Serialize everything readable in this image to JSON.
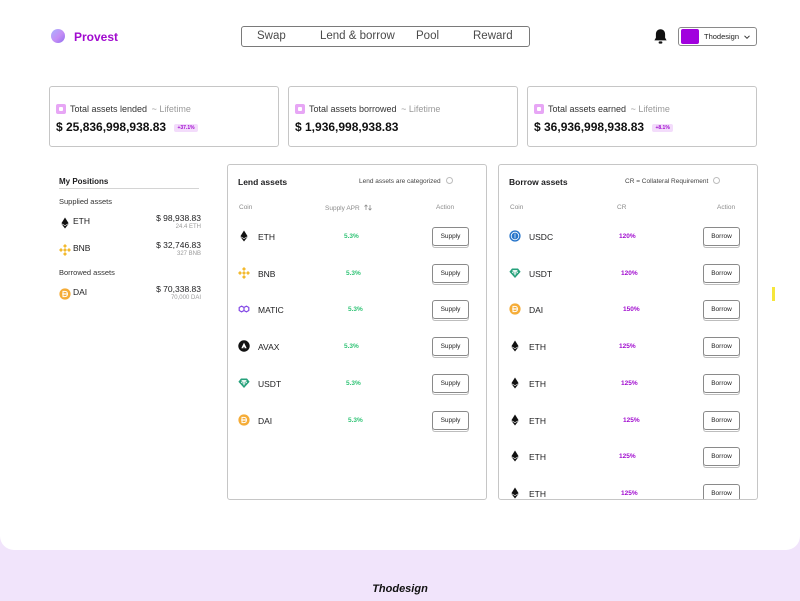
{
  "brand": {
    "name": "Provest"
  },
  "nav": [
    {
      "label": "Swap"
    },
    {
      "label": "Lend & borrow"
    },
    {
      "label": "Pool"
    },
    {
      "label": "Reward"
    }
  ],
  "account": {
    "name": "Thodesign",
    "avatar_color": "#a100de"
  },
  "stats": [
    {
      "label": "Total assets lended",
      "sub": "~ Lifetime",
      "value": "$ 25,836,998,938.83",
      "badge": "+37.1%"
    },
    {
      "label": "Total assets borrowed",
      "sub": "~ Lifetime",
      "value": "$ 1,936,998,938.83",
      "badge": ""
    },
    {
      "label": "Total assets earned",
      "sub": "~ Lifetime",
      "value": "$ 36,936,998,938.83",
      "badge": "+8.1%"
    }
  ],
  "positions": {
    "title": "My Positions",
    "supplied_label": "Supplied assets",
    "supplied": [
      {
        "symbol": "ETH",
        "icon": "eth-icon",
        "value": "$ 98,938.83",
        "amount": "24.4 ETH"
      },
      {
        "symbol": "BNB",
        "icon": "bnb-icon",
        "value": "$ 32,746.83",
        "amount": "327 BNB"
      }
    ],
    "borrowed_label": "Borrowed assets",
    "borrowed": [
      {
        "symbol": "DAI",
        "icon": "dai-icon",
        "value": "$ 70,338.83",
        "amount": "70,000 DAI"
      }
    ]
  },
  "lend": {
    "title": "Lend assets",
    "note": "Lend assets are categorized",
    "col_coin": "Coin",
    "col_rate": "Supply APR",
    "col_action": "Action",
    "rows": [
      {
        "symbol": "ETH",
        "icon": "eth-icon",
        "rate": "5.3%",
        "action": "Supply"
      },
      {
        "symbol": "BNB",
        "icon": "bnb-icon",
        "rate": "5.3%",
        "action": "Supply"
      },
      {
        "symbol": "MATIC",
        "icon": "matic-icon",
        "rate": "5.3%",
        "action": "Supply"
      },
      {
        "symbol": "AVAX",
        "icon": "avax-icon",
        "rate": "5.3%",
        "action": "Supply"
      },
      {
        "symbol": "USDT",
        "icon": "usdt-icon",
        "rate": "5.3%",
        "action": "Supply"
      },
      {
        "symbol": "DAI",
        "icon": "dai-icon",
        "rate": "5.3%",
        "action": "Supply"
      }
    ]
  },
  "borrow": {
    "title": "Borrow assets",
    "note": "CR = Collateral Requirement",
    "col_coin": "Coin",
    "col_rate": "CR",
    "col_action": "Action",
    "rows": [
      {
        "symbol": "USDC",
        "icon": "usdc-icon",
        "rate": "120%",
        "action": "Borrow"
      },
      {
        "symbol": "USDT",
        "icon": "usdt-icon",
        "rate": "120%",
        "action": "Borrow"
      },
      {
        "symbol": "DAI",
        "icon": "dai-icon",
        "rate": "150%",
        "action": "Borrow"
      },
      {
        "symbol": "ETH",
        "icon": "eth-icon",
        "rate": "125%",
        "action": "Borrow"
      },
      {
        "symbol": "ETH",
        "icon": "eth-icon",
        "rate": "125%",
        "action": "Borrow"
      },
      {
        "symbol": "ETH",
        "icon": "eth-icon",
        "rate": "125%",
        "action": "Borrow"
      },
      {
        "symbol": "ETH",
        "icon": "eth-icon",
        "rate": "125%",
        "action": "Borrow"
      },
      {
        "symbol": "ETH",
        "icon": "eth-icon",
        "rate": "125%",
        "action": "Borrow"
      }
    ]
  },
  "footer": {
    "brand": "Thodesign"
  },
  "colors": {
    "accent": "#a10bcf",
    "positive": "#31c476",
    "footer_bg": "#f1e4fb"
  }
}
